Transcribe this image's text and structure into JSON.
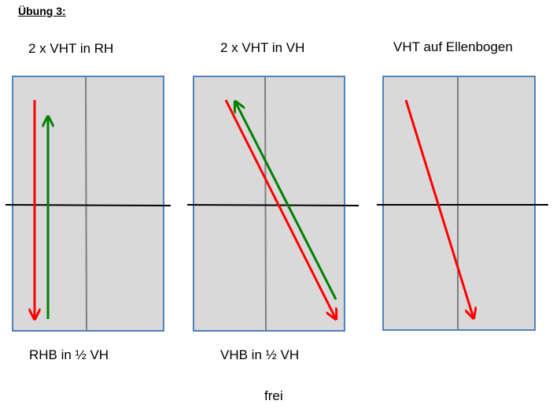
{
  "heading": "Übung 3:",
  "panels": [
    {
      "title": "2 x VHT in RH",
      "caption": "RHB in ½ VH",
      "arrows": [
        {
          "color": "#ff0000",
          "direction": "down"
        },
        {
          "color": "#008000",
          "direction": "up"
        }
      ]
    },
    {
      "title": "2 x VHT in VH",
      "caption": "VHB in ½ VH",
      "arrows": [
        {
          "color": "#ff0000",
          "direction": "down-right"
        },
        {
          "color": "#008000",
          "direction": "up-left"
        }
      ]
    },
    {
      "title": "VHT auf Ellenbogen",
      "caption": "",
      "arrows": [
        {
          "color": "#ff0000",
          "direction": "down-right"
        }
      ]
    }
  ],
  "footer": "frei",
  "colors": {
    "field_fill": "#d9d9d9",
    "field_border": "#4f81bd",
    "center_line": "#7f7f7f",
    "half_line": "#000000",
    "arrow_red": "#ff0000",
    "arrow_green": "#008000"
  }
}
